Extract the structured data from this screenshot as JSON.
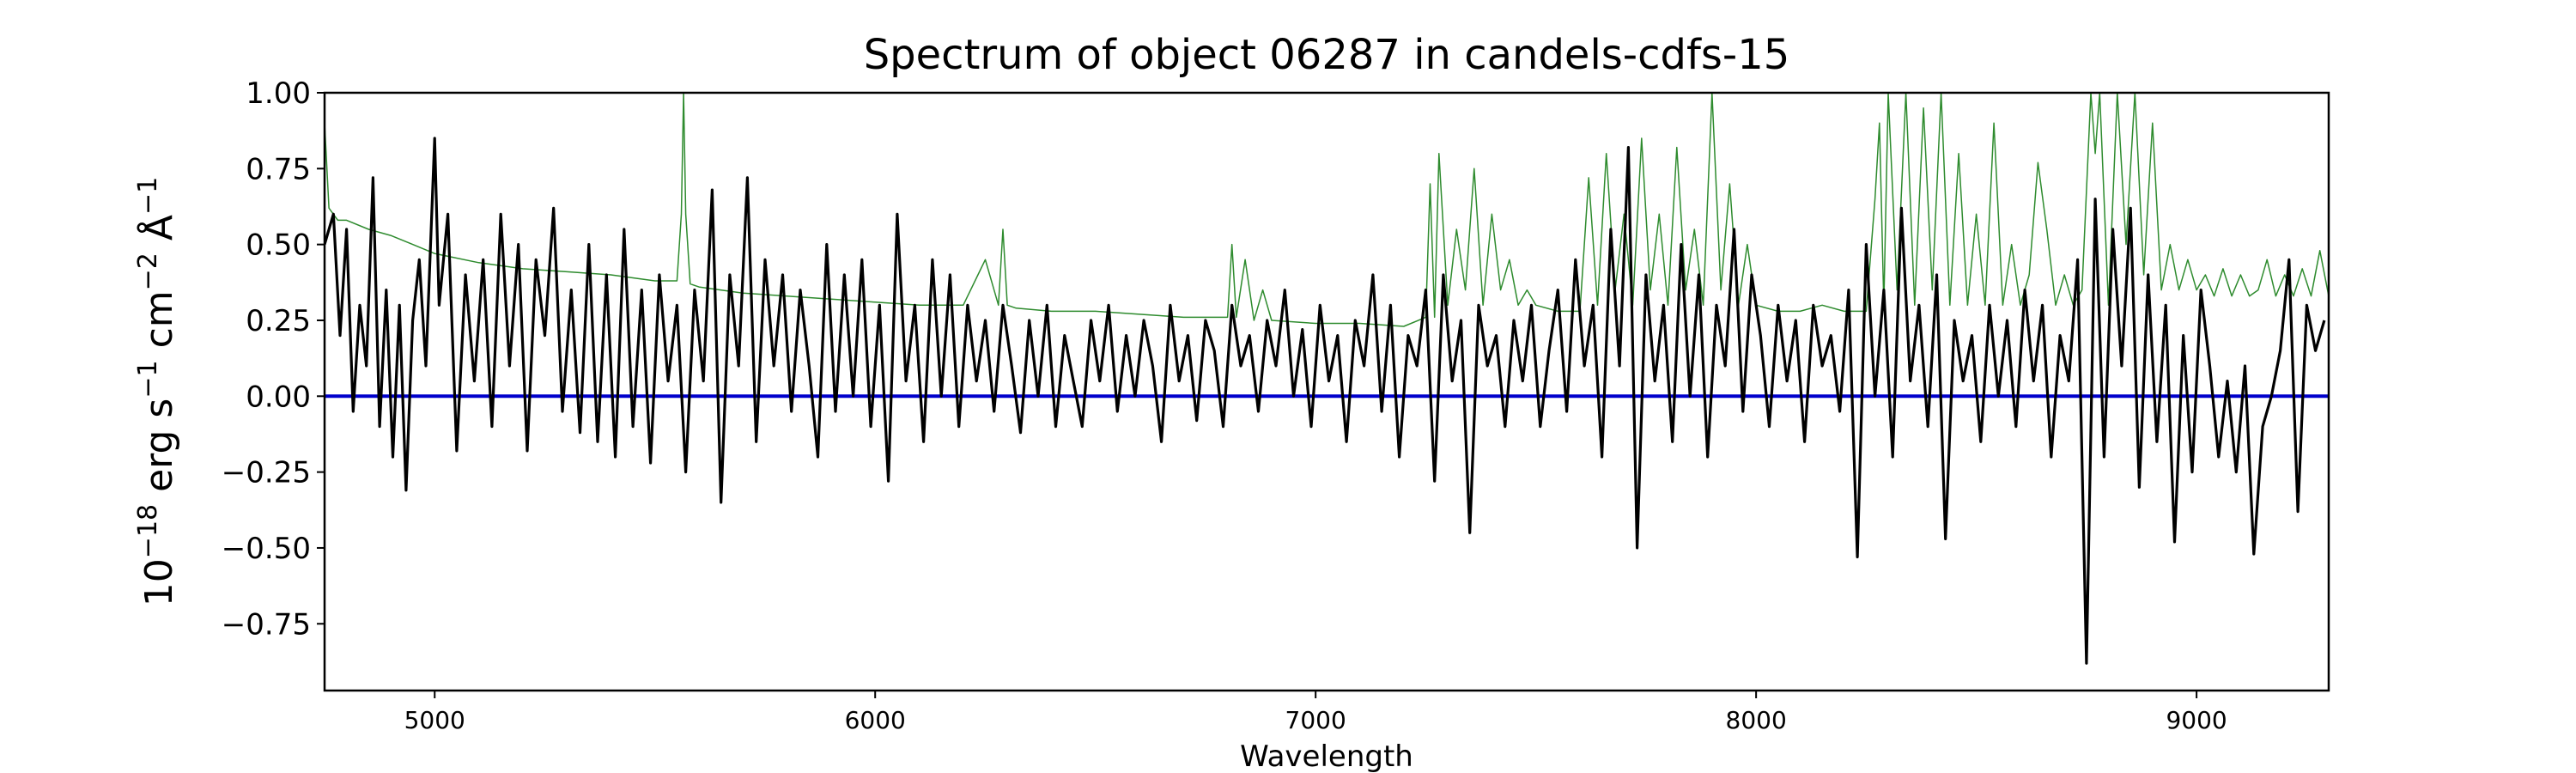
{
  "chart_data": {
    "type": "line",
    "title": "Spectrum of object 06287 in candels-cdfs-15",
    "xlabel": "Wavelength",
    "ylabel_parts": [
      "10",
      "−18",
      " erg s",
      "−1",
      " cm",
      "−2",
      " Å",
      "−1"
    ],
    "xlim": [
      4750,
      9300
    ],
    "ylim": [
      -0.97,
      1.0
    ],
    "xticks": [
      5000,
      6000,
      7000,
      8000,
      9000
    ],
    "xtick_labels": [
      "5000",
      "6000",
      "7000",
      "8000",
      "9000"
    ],
    "yticks": [
      1.0,
      0.75,
      0.5,
      0.25,
      0.0,
      -0.25,
      -0.5,
      -0.75
    ],
    "ytick_labels": [
      "1.00",
      "0.75",
      "0.50",
      "0.25",
      "0.00",
      "−0.25",
      "−0.50",
      "−0.75"
    ],
    "grid": false,
    "colors": {
      "flux": "#000000",
      "error": "#2e8b2e",
      "zero": "#0000cc"
    },
    "series": [
      {
        "key": "flux",
        "x": [
          4750,
          4770,
          4785,
          4800,
          4815,
          4830,
          4845,
          4860,
          4875,
          4890,
          4905,
          4920,
          4935,
          4950,
          4965,
          4980,
          5000,
          5010,
          5030,
          5050,
          5070,
          5090,
          5110,
          5130,
          5150,
          5170,
          5190,
          5210,
          5230,
          5250,
          5270,
          5290,
          5310,
          5330,
          5350,
          5370,
          5390,
          5410,
          5430,
          5450,
          5470,
          5490,
          5510,
          5530,
          5550,
          5570,
          5590,
          5610,
          5630,
          5650,
          5670,
          5690,
          5710,
          5730,
          5750,
          5770,
          5790,
          5810,
          5830,
          5850,
          5870,
          5890,
          5910,
          5930,
          5950,
          5970,
          5990,
          6010,
          6030,
          6050,
          6070,
          6090,
          6110,
          6130,
          6150,
          6170,
          6190,
          6210,
          6230,
          6250,
          6270,
          6290,
          6310,
          6330,
          6350,
          6370,
          6390,
          6410,
          6430,
          6450,
          6470,
          6490,
          6510,
          6530,
          6550,
          6570,
          6590,
          6610,
          6630,
          6650,
          6670,
          6690,
          6710,
          6730,
          6750,
          6770,
          6790,
          6810,
          6830,
          6850,
          6870,
          6890,
          6910,
          6930,
          6950,
          6970,
          6990,
          7010,
          7030,
          7050,
          7070,
          7090,
          7110,
          7130,
          7150,
          7170,
          7190,
          7210,
          7230,
          7250,
          7270,
          7290,
          7310,
          7330,
          7350,
          7370,
          7390,
          7410,
          7430,
          7450,
          7470,
          7490,
          7510,
          7530,
          7550,
          7570,
          7590,
          7610,
          7630,
          7650,
          7670,
          7690,
          7710,
          7730,
          7750,
          7770,
          7790,
          7810,
          7830,
          7850,
          7870,
          7890,
          7910,
          7930,
          7950,
          7970,
          7990,
          8010,
          8030,
          8050,
          8070,
          8090,
          8110,
          8130,
          8150,
          8170,
          8190,
          8210,
          8230,
          8250,
          8270,
          8290,
          8310,
          8330,
          8350,
          8370,
          8390,
          8410,
          8430,
          8450,
          8470,
          8490,
          8510,
          8530,
          8550,
          8570,
          8590,
          8610,
          8630,
          8650,
          8670,
          8690,
          8710,
          8730,
          8750,
          8770,
          8790,
          8810,
          8830,
          8850,
          8870,
          8890,
          8910,
          8930,
          8950,
          8970,
          8990,
          9010,
          9030,
          9050,
          9070,
          9090,
          9110,
          9130,
          9150,
          9170,
          9190,
          9210,
          9230,
          9250,
          9270,
          9290
        ],
        "y": [
          0.5,
          0.6,
          0.2,
          0.55,
          -0.05,
          0.3,
          0.1,
          0.72,
          -0.1,
          0.35,
          -0.2,
          0.3,
          -0.31,
          0.25,
          0.45,
          0.1,
          0.85,
          0.3,
          0.6,
          -0.18,
          0.4,
          0.05,
          0.45,
          -0.1,
          0.6,
          0.1,
          0.5,
          -0.18,
          0.45,
          0.2,
          0.62,
          -0.05,
          0.35,
          -0.12,
          0.5,
          -0.15,
          0.4,
          -0.2,
          0.55,
          -0.1,
          0.35,
          -0.22,
          0.4,
          0.05,
          0.3,
          -0.25,
          0.35,
          0.05,
          0.68,
          -0.35,
          0.4,
          0.1,
          0.72,
          -0.15,
          0.45,
          0.1,
          0.4,
          -0.05,
          0.35,
          0.1,
          -0.2,
          0.5,
          -0.05,
          0.4,
          0.0,
          0.45,
          -0.1,
          0.3,
          -0.28,
          0.6,
          0.05,
          0.3,
          -0.15,
          0.45,
          0.0,
          0.4,
          -0.1,
          0.3,
          0.05,
          0.25,
          -0.05,
          0.3,
          0.1,
          -0.12,
          0.25,
          0.0,
          0.3,
          -0.1,
          0.2,
          0.05,
          -0.1,
          0.25,
          0.05,
          0.3,
          -0.05,
          0.2,
          0.0,
          0.25,
          0.1,
          -0.15,
          0.3,
          0.05,
          0.2,
          -0.08,
          0.25,
          0.15,
          -0.1,
          0.3,
          0.1,
          0.2,
          -0.05,
          0.25,
          0.1,
          0.35,
          0.0,
          0.22,
          -0.1,
          0.3,
          0.05,
          0.2,
          -0.15,
          0.25,
          0.1,
          0.4,
          -0.05,
          0.3,
          -0.2,
          0.2,
          0.1,
          0.35,
          -0.28,
          0.4,
          0.05,
          0.25,
          -0.45,
          0.3,
          0.1,
          0.2,
          -0.1,
          0.25,
          0.05,
          0.3,
          -0.1,
          0.15,
          0.35,
          -0.05,
          0.45,
          0.1,
          0.3,
          -0.2,
          0.55,
          0.1,
          0.82,
          -0.5,
          0.4,
          0.05,
          0.3,
          -0.15,
          0.5,
          0.0,
          0.4,
          -0.2,
          0.3,
          0.1,
          0.55,
          -0.05,
          0.4,
          0.2,
          -0.1,
          0.3,
          0.05,
          0.25,
          -0.15,
          0.3,
          0.1,
          0.2,
          -0.05,
          0.35,
          -0.53,
          0.5,
          0.0,
          0.35,
          -0.2,
          0.62,
          0.05,
          0.3,
          -0.1,
          0.4,
          -0.47,
          0.25,
          0.05,
          0.2,
          -0.15,
          0.3,
          0.0,
          0.25,
          -0.1,
          0.35,
          0.05,
          0.3,
          -0.2,
          0.2,
          0.05,
          0.45,
          -0.88,
          0.65,
          -0.2,
          0.55,
          0.1,
          0.62,
          -0.3,
          0.4,
          -0.15,
          0.3,
          -0.48,
          0.2,
          -0.25,
          0.35,
          0.1,
          -0.2,
          0.05,
          -0.25,
          0.1,
          -0.52,
          -0.1,
          0.0,
          0.15,
          0.45,
          -0.38,
          0.3,
          0.15,
          0.25
        ]
      },
      {
        "key": "error",
        "x": [
          4750,
          4760,
          4780,
          4800,
          4850,
          4900,
          4950,
          5000,
          5100,
          5200,
          5300,
          5400,
          5500,
          5550,
          5560,
          5565,
          5570,
          5580,
          5600,
          5700,
          5800,
          5900,
          6000,
          6100,
          6200,
          6250,
          6280,
          6290,
          6300,
          6320,
          6400,
          6500,
          6600,
          6700,
          6800,
          6810,
          6820,
          6840,
          6860,
          6880,
          6900,
          7000,
          7100,
          7200,
          7250,
          7260,
          7270,
          7280,
          7300,
          7320,
          7340,
          7360,
          7380,
          7400,
          7420,
          7440,
          7460,
          7480,
          7500,
          7550,
          7600,
          7620,
          7640,
          7660,
          7680,
          7700,
          7720,
          7740,
          7760,
          7780,
          7800,
          7820,
          7840,
          7860,
          7880,
          7900,
          7920,
          7940,
          7960,
          7980,
          8000,
          8050,
          8100,
          8150,
          8200,
          8250,
          8270,
          8280,
          8290,
          8300,
          8320,
          8340,
          8360,
          8380,
          8400,
          8420,
          8440,
          8460,
          8480,
          8500,
          8520,
          8540,
          8560,
          8580,
          8600,
          8620,
          8640,
          8660,
          8680,
          8700,
          8720,
          8740,
          8760,
          8770,
          8780,
          8800,
          8820,
          8840,
          8860,
          8880,
          8900,
          8920,
          8940,
          8960,
          8980,
          9000,
          9020,
          9040,
          9060,
          9080,
          9100,
          9120,
          9140,
          9160,
          9180,
          9200,
          9220,
          9240,
          9260,
          9280,
          9300
        ],
        "y": [
          0.9,
          0.62,
          0.58,
          0.58,
          0.55,
          0.53,
          0.5,
          0.47,
          0.44,
          0.42,
          0.41,
          0.4,
          0.38,
          0.38,
          0.6,
          1.0,
          0.6,
          0.37,
          0.36,
          0.34,
          0.33,
          0.32,
          0.31,
          0.3,
          0.3,
          0.45,
          0.3,
          0.55,
          0.3,
          0.29,
          0.28,
          0.28,
          0.27,
          0.26,
          0.26,
          0.5,
          0.26,
          0.45,
          0.25,
          0.35,
          0.25,
          0.24,
          0.24,
          0.23,
          0.26,
          0.7,
          0.26,
          0.8,
          0.3,
          0.55,
          0.35,
          0.75,
          0.3,
          0.6,
          0.35,
          0.45,
          0.3,
          0.35,
          0.3,
          0.28,
          0.28,
          0.72,
          0.3,
          0.8,
          0.35,
          0.6,
          0.3,
          0.85,
          0.35,
          0.6,
          0.3,
          0.82,
          0.35,
          0.55,
          0.3,
          1.0,
          0.35,
          0.7,
          0.3,
          0.5,
          0.3,
          0.28,
          0.28,
          0.3,
          0.28,
          0.28,
          0.65,
          0.9,
          0.3,
          1.0,
          0.35,
          1.0,
          0.3,
          0.95,
          0.35,
          1.0,
          0.3,
          0.8,
          0.3,
          0.6,
          0.3,
          0.9,
          0.3,
          0.5,
          0.3,
          0.4,
          0.77,
          0.55,
          0.3,
          0.4,
          0.3,
          0.35,
          1.0,
          0.8,
          1.0,
          0.3,
          1.0,
          0.5,
          1.0,
          0.4,
          0.9,
          0.35,
          0.5,
          0.35,
          0.45,
          0.35,
          0.4,
          0.33,
          0.42,
          0.33,
          0.4,
          0.33,
          0.35,
          0.45,
          0.33,
          0.4,
          0.33,
          0.42,
          0.33,
          0.48,
          0.33
        ]
      }
    ],
    "zero_line": 0.0
  }
}
